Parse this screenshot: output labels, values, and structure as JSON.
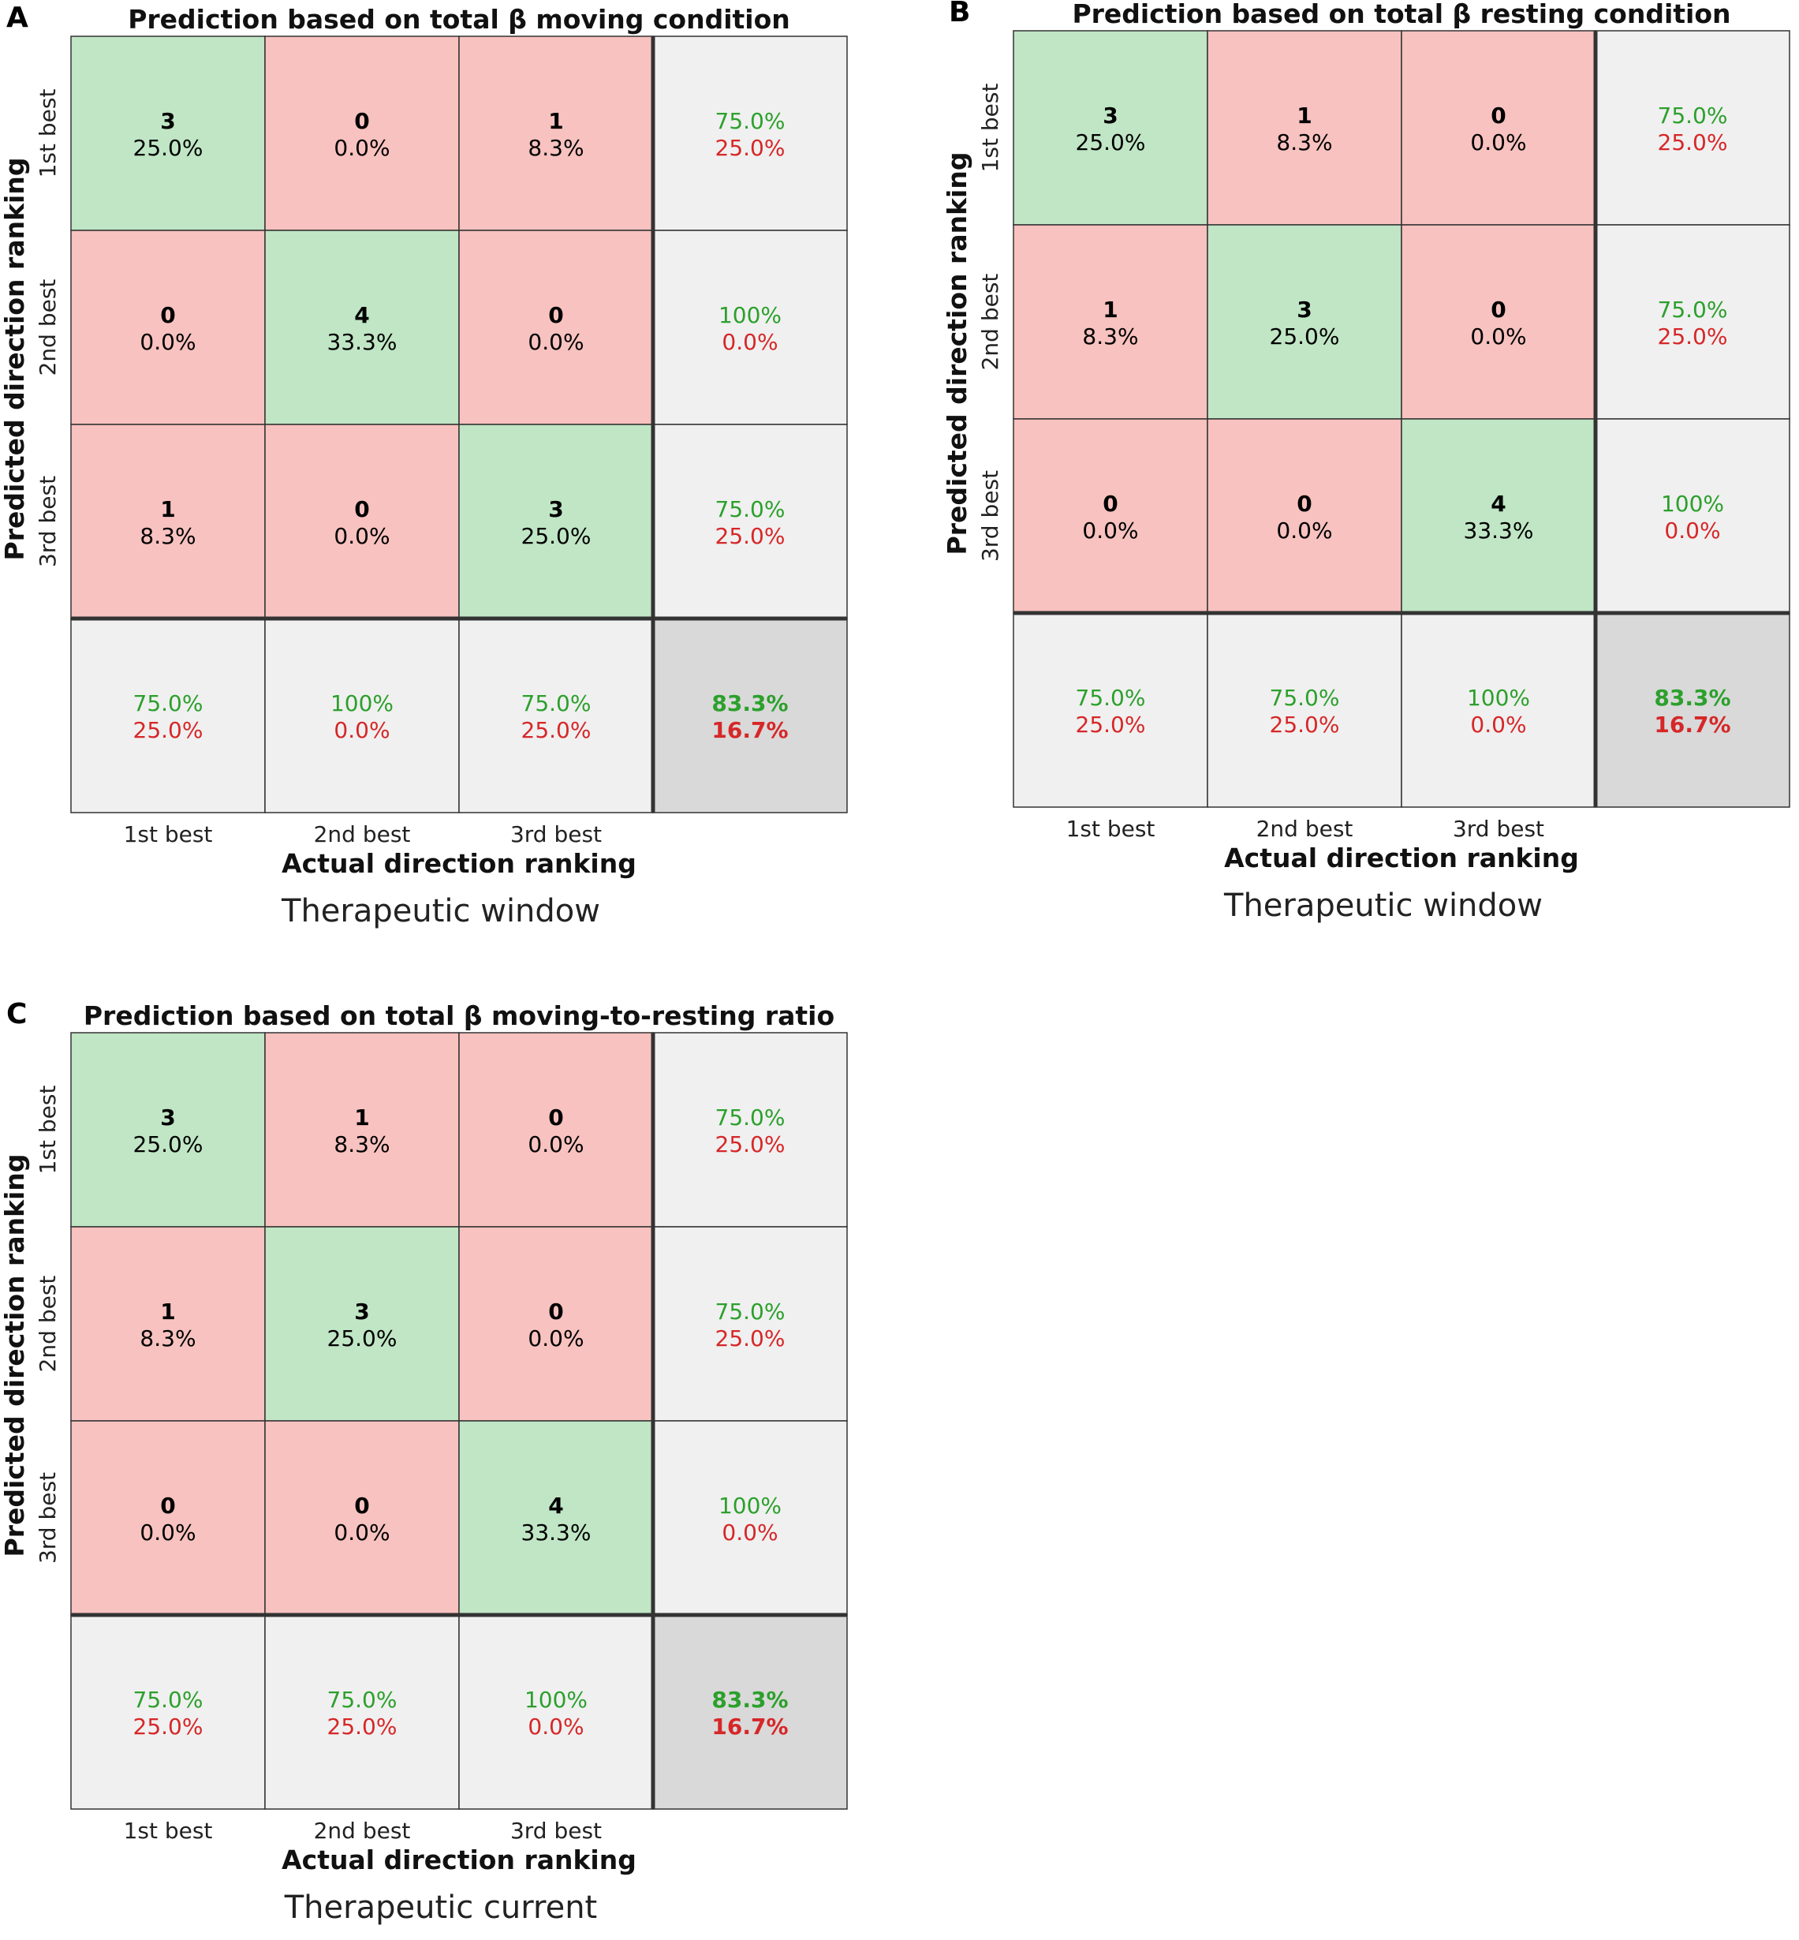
{
  "colors": {
    "correct_fill": "#c0e6c5",
    "wrong_fill": "#f7c2bf",
    "summary_fill": "#f0f0f0",
    "total_fill": "#d9d9d9",
    "green_text": "#2ca02c",
    "red_text": "#d62728",
    "border": "#333333"
  },
  "chart_data": [
    {
      "type": "heatmap",
      "panel_label": "A",
      "title": "Prediction based on total β moving condition",
      "xlabel": "Actual direction ranking",
      "ylabel": "Predicted direction ranking",
      "caption": "Therapeutic window",
      "categories": [
        "1st best",
        "2nd best",
        "3rd best"
      ],
      "counts": [
        [
          3,
          0,
          1
        ],
        [
          0,
          4,
          0
        ],
        [
          1,
          0,
          3
        ]
      ],
      "percents": [
        [
          "25.0%",
          "0.0%",
          "8.3%"
        ],
        [
          "0.0%",
          "33.3%",
          "0.0%"
        ],
        [
          "8.3%",
          "0.0%",
          "25.0%"
        ]
      ],
      "row_summary": [
        [
          "75.0%",
          "25.0%"
        ],
        [
          "100%",
          "0.0%"
        ],
        [
          "75.0%",
          "25.0%"
        ]
      ],
      "col_summary": [
        [
          "75.0%",
          "25.0%"
        ],
        [
          "100%",
          "0.0%"
        ],
        [
          "75.0%",
          "25.0%"
        ]
      ],
      "total": [
        "83.3%",
        "16.7%"
      ]
    },
    {
      "type": "heatmap",
      "panel_label": "B",
      "title": "Prediction based on total β resting condition",
      "xlabel": "Actual direction ranking",
      "ylabel": "Predicted direction ranking",
      "caption": "Therapeutic window",
      "categories": [
        "1st best",
        "2nd best",
        "3rd best"
      ],
      "counts": [
        [
          3,
          1,
          0
        ],
        [
          1,
          3,
          0
        ],
        [
          0,
          0,
          4
        ]
      ],
      "percents": [
        [
          "25.0%",
          "8.3%",
          "0.0%"
        ],
        [
          "8.3%",
          "25.0%",
          "0.0%"
        ],
        [
          "0.0%",
          "0.0%",
          "33.3%"
        ]
      ],
      "row_summary": [
        [
          "75.0%",
          "25.0%"
        ],
        [
          "75.0%",
          "25.0%"
        ],
        [
          "100%",
          "0.0%"
        ]
      ],
      "col_summary": [
        [
          "75.0%",
          "25.0%"
        ],
        [
          "75.0%",
          "25.0%"
        ],
        [
          "100%",
          "0.0%"
        ]
      ],
      "total": [
        "83.3%",
        "16.7%"
      ]
    },
    {
      "type": "heatmap",
      "panel_label": "C",
      "title": "Prediction based on total β moving-to-resting ratio",
      "xlabel": "Actual direction ranking",
      "ylabel": "Predicted direction ranking",
      "caption": "Therapeutic current",
      "categories": [
        "1st best",
        "2nd best",
        "3rd best"
      ],
      "counts": [
        [
          3,
          1,
          0
        ],
        [
          1,
          3,
          0
        ],
        [
          0,
          0,
          4
        ]
      ],
      "percents": [
        [
          "25.0%",
          "8.3%",
          "0.0%"
        ],
        [
          "8.3%",
          "25.0%",
          "0.0%"
        ],
        [
          "0.0%",
          "0.0%",
          "33.3%"
        ]
      ],
      "row_summary": [
        [
          "75.0%",
          "25.0%"
        ],
        [
          "75.0%",
          "25.0%"
        ],
        [
          "100%",
          "0.0%"
        ]
      ],
      "col_summary": [
        [
          "75.0%",
          "25.0%"
        ],
        [
          "75.0%",
          "25.0%"
        ],
        [
          "100%",
          "0.0%"
        ]
      ],
      "total": [
        "83.3%",
        "16.7%"
      ]
    }
  ]
}
